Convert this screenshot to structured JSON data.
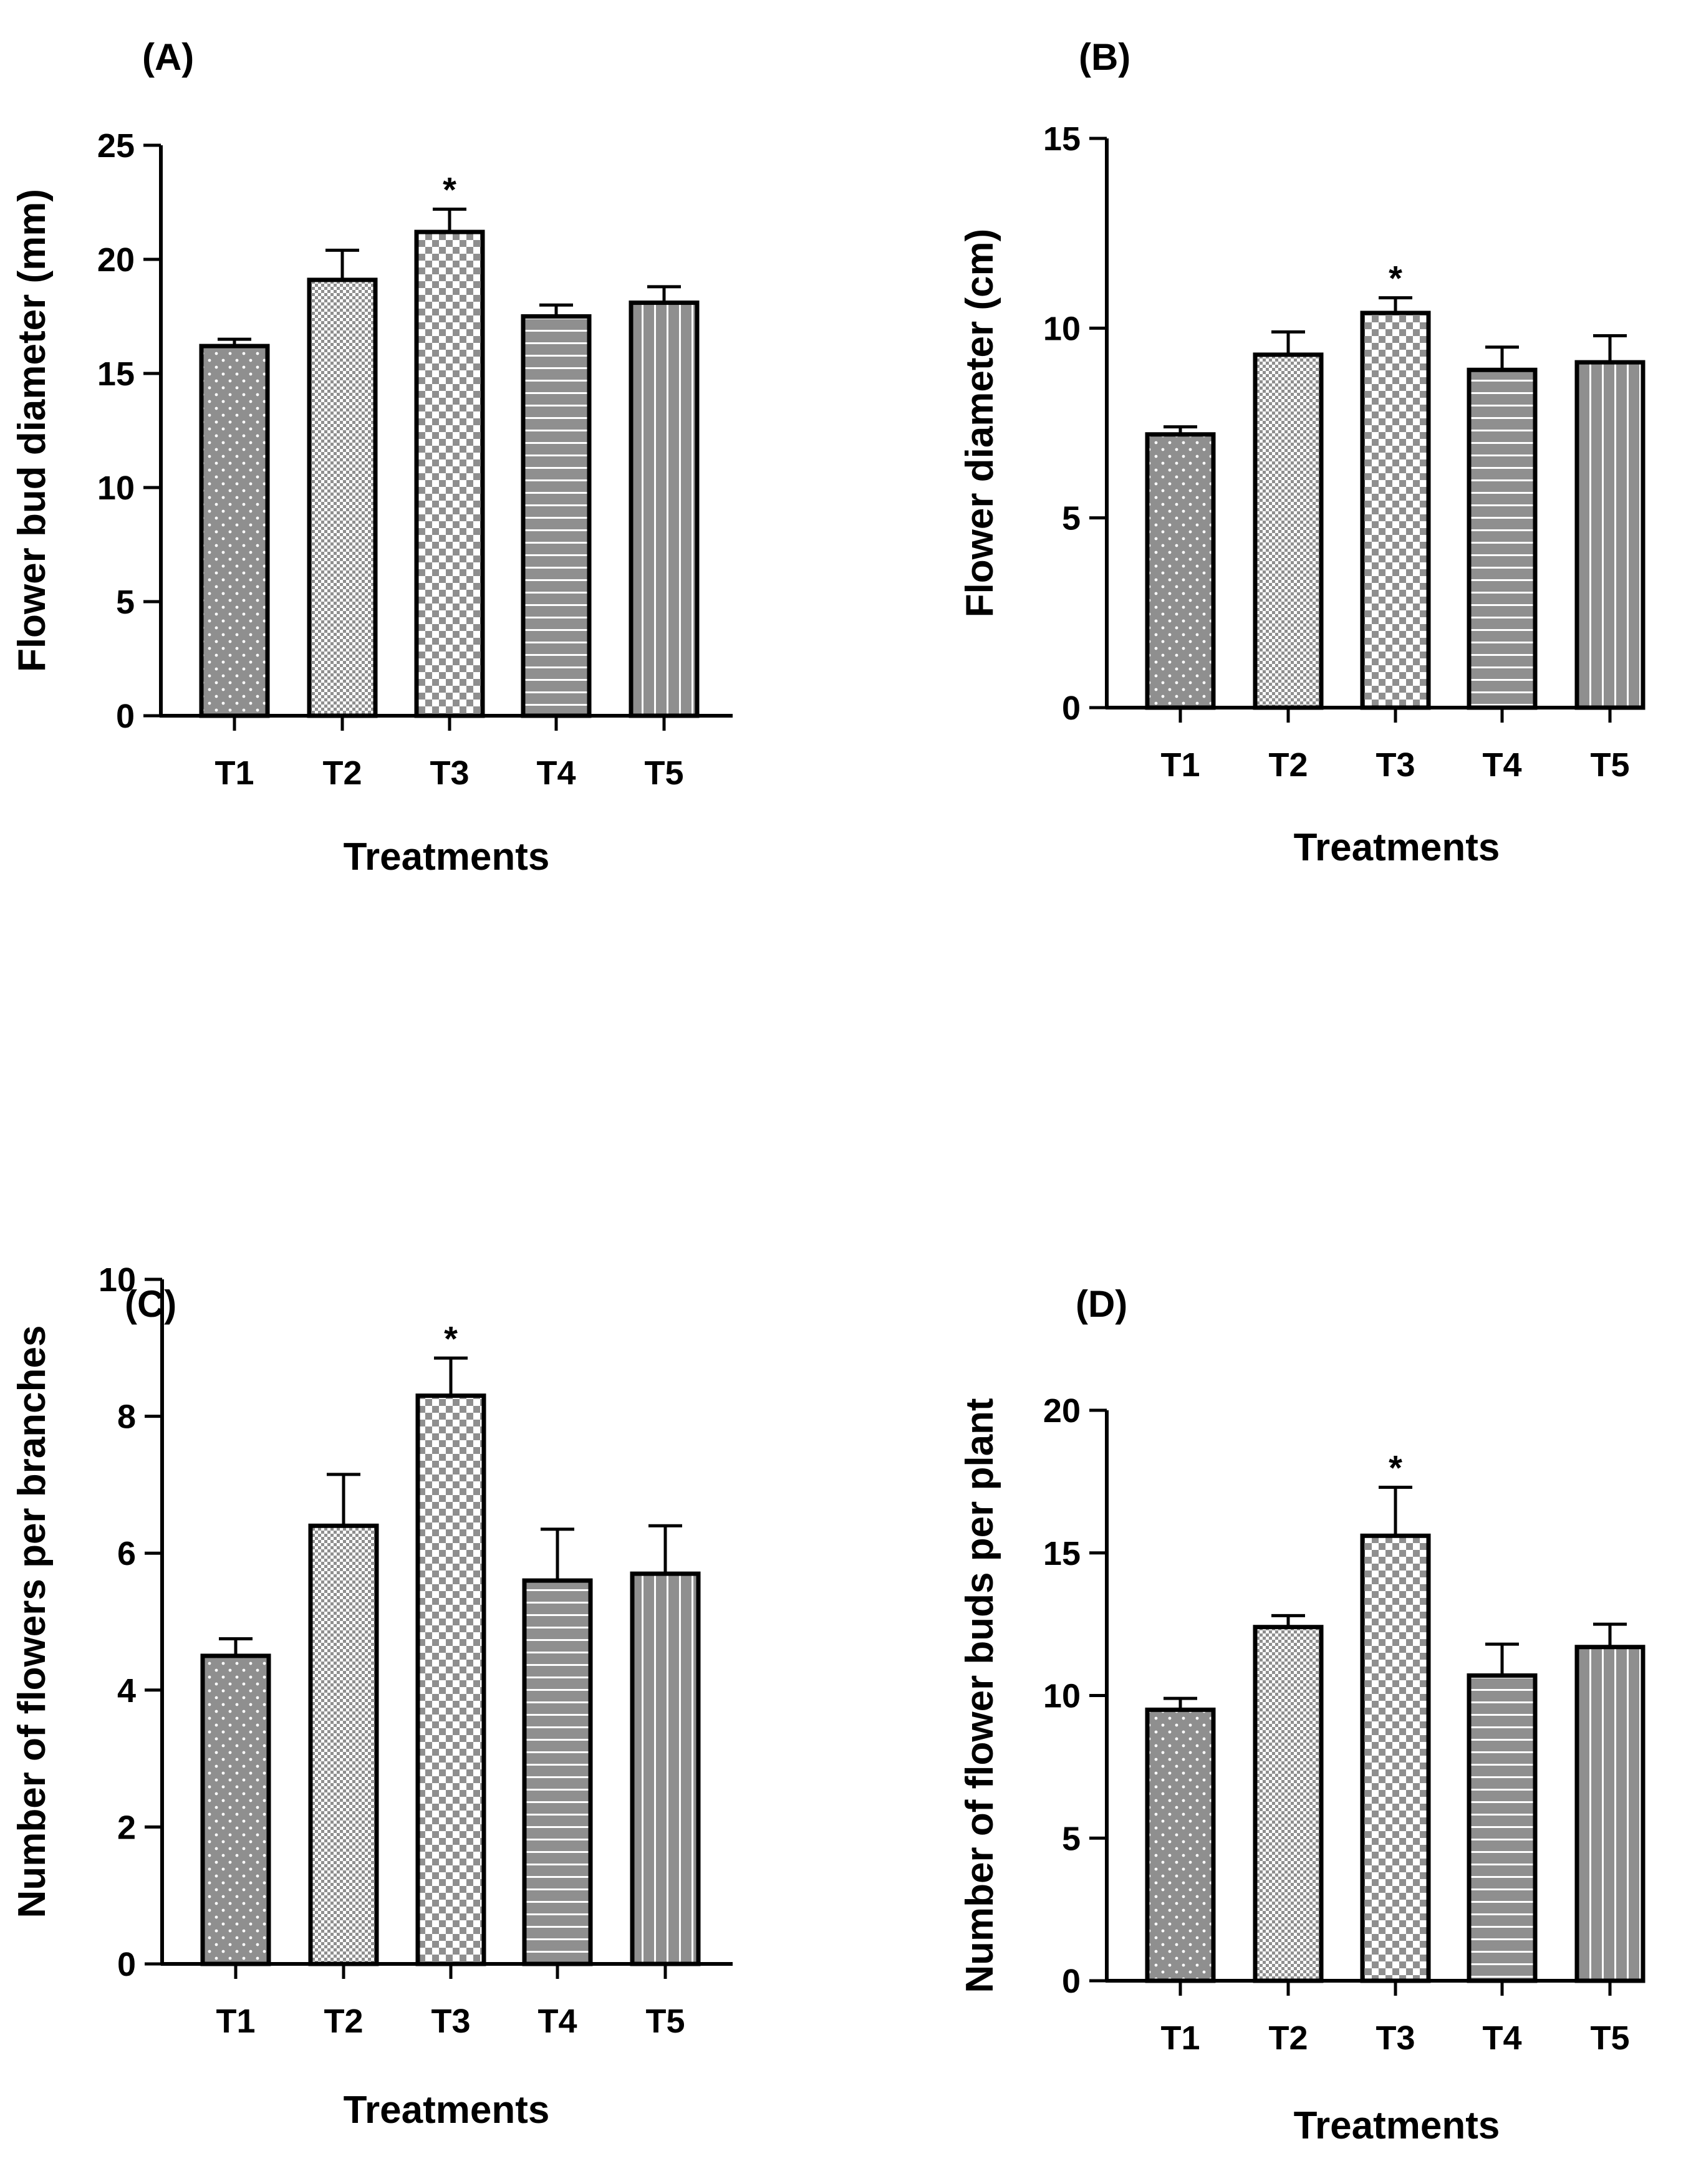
{
  "chart_data": [
    {
      "type": "bar",
      "panel_label": "(A)",
      "title": "",
      "xlabel": "Treatments",
      "ylabel": "Flower bud diameter (mm)",
      "categories": [
        "T1",
        "T2",
        "T3",
        "T4",
        "T5"
      ],
      "values": [
        16.2,
        19.1,
        21.2,
        17.5,
        18.1
      ],
      "errors": [
        0.3,
        1.3,
        1.0,
        0.5,
        0.7
      ],
      "significance": [
        "",
        "",
        "*",
        "",
        ""
      ],
      "patterns": [
        "dots",
        "fine-check",
        "checker",
        "hstripes",
        "vstripes"
      ],
      "ylim": [
        0,
        25
      ],
      "yticks": [
        0,
        5,
        10,
        15,
        20,
        25
      ],
      "grid": false
    },
    {
      "type": "bar",
      "panel_label": "(B)",
      "title": "",
      "xlabel": "Treatments",
      "ylabel": "Flower diameter (cm)",
      "categories": [
        "T1",
        "T2",
        "T3",
        "T4",
        "T5"
      ],
      "values": [
        7.2,
        9.3,
        10.4,
        8.9,
        9.1
      ],
      "errors": [
        0.2,
        0.6,
        0.4,
        0.6,
        0.7
      ],
      "significance": [
        "",
        "",
        "*",
        "",
        ""
      ],
      "patterns": [
        "dots",
        "fine-check",
        "checker",
        "hstripes",
        "vstripes"
      ],
      "ylim": [
        0,
        15
      ],
      "yticks": [
        0,
        5,
        10,
        15
      ],
      "grid": false
    },
    {
      "type": "bar",
      "panel_label": "(C)",
      "title": "",
      "xlabel": "Treatments",
      "ylabel": "Number of flowers per branches",
      "categories": [
        "T1",
        "T2",
        "T3",
        "T4",
        "T5"
      ],
      "values": [
        4.5,
        6.4,
        8.3,
        5.6,
        5.7
      ],
      "errors": [
        0.25,
        0.75,
        0.55,
        0.75,
        0.7
      ],
      "significance": [
        "",
        "",
        "*",
        "",
        ""
      ],
      "patterns": [
        "dots",
        "fine-check",
        "checker",
        "hstripes",
        "vstripes"
      ],
      "ylim": [
        0,
        10
      ],
      "yticks": [
        0,
        2,
        4,
        6,
        8,
        10
      ],
      "grid": false
    },
    {
      "type": "bar",
      "panel_label": "(D)",
      "title": "",
      "xlabel": "Treatments",
      "ylabel": "Number of flower buds per plant",
      "categories": [
        "T1",
        "T2",
        "T3",
        "T4",
        "T5"
      ],
      "values": [
        9.5,
        12.4,
        15.6,
        10.7,
        11.7
      ],
      "errors": [
        0.4,
        0.4,
        1.7,
        1.1,
        0.8
      ],
      "significance": [
        "",
        "",
        "*",
        "",
        ""
      ],
      "patterns": [
        "dots",
        "fine-check",
        "checker",
        "hstripes",
        "vstripes"
      ],
      "ylim": [
        0,
        20
      ],
      "yticks": [
        0,
        5,
        10,
        15,
        20
      ],
      "grid": false
    }
  ],
  "colors": {
    "bar_fill": "#8f8f8f",
    "pattern_light": "#ffffff",
    "outline": "#000000"
  }
}
